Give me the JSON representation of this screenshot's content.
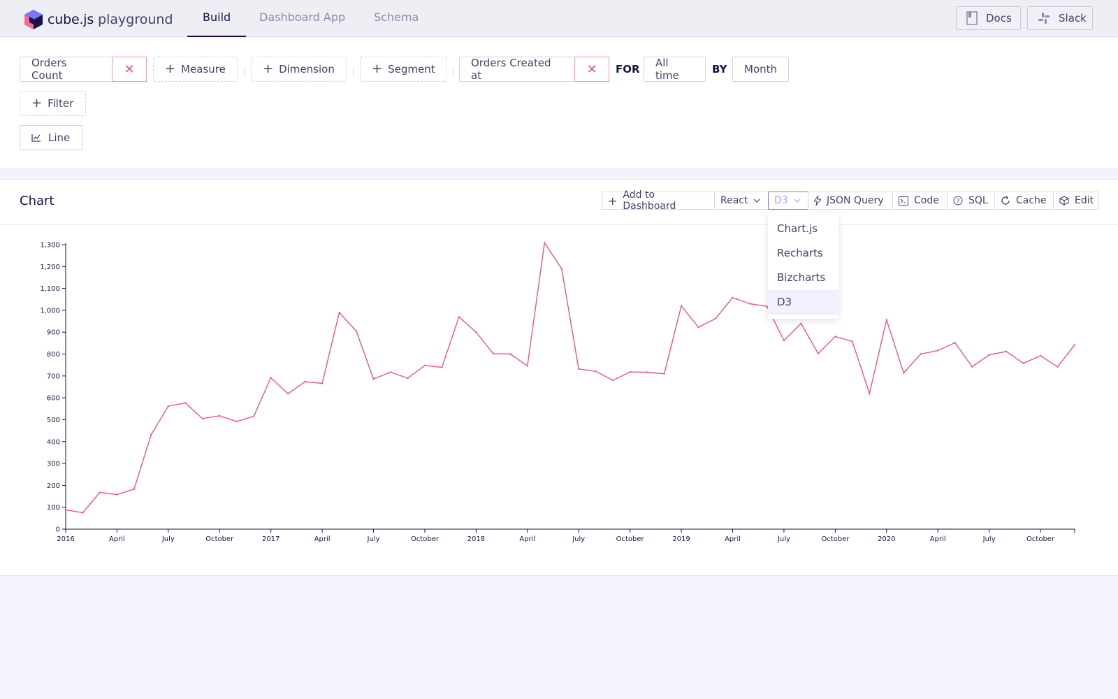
{
  "header": {
    "logo_brand": "cube.js",
    "logo_sub": "playground",
    "tabs": [
      {
        "label": "Build",
        "active": true
      },
      {
        "label": "Dashboard App",
        "active": false
      },
      {
        "label": "Schema",
        "active": false
      }
    ],
    "docs_label": "Docs",
    "slack_label": "Slack"
  },
  "query": {
    "measure_selected": "Orders Count",
    "measure_add": "Measure",
    "dimension_add": "Dimension",
    "segment_add": "Segment",
    "time_dimension": "Orders Created at",
    "for_label": "FOR",
    "date_range": "All time",
    "by_label": "BY",
    "granularity": "Month",
    "filter_add": "Filter",
    "chart_type": "Line"
  },
  "chart_card": {
    "title": "Chart",
    "toolbar": {
      "add_to_dashboard": "Add to Dashboard",
      "framework": "React",
      "library": "D3",
      "json_query": "JSON Query",
      "code": "Code",
      "sql": "SQL",
      "cache": "Cache",
      "edit": "Edit"
    },
    "library_menu": [
      "Chart.js",
      "Recharts",
      "Bizcharts",
      "D3"
    ],
    "library_selected": "D3"
  },
  "colors": {
    "accent": "#7a77ff",
    "line": "#f0547a",
    "text_dark": "#141446",
    "text": "#43436b"
  },
  "chart_data": {
    "type": "line",
    "series": [
      {
        "values": [
          88,
          75,
          168,
          158,
          183,
          432,
          562,
          577,
          505,
          518,
          492,
          516,
          692,
          619,
          674,
          666,
          990,
          904,
          686,
          717,
          690,
          748,
          739,
          970,
          900,
          802,
          800,
          746,
          1308,
          1190,
          732,
          721,
          680,
          718,
          717,
          710,
          1020,
          922,
          962,
          1058,
          1030,
          1018,
          862,
          940,
          802,
          880,
          858,
          620,
          956,
          714,
          800,
          816,
          852,
          742,
          796,
          812,
          758,
          792,
          742,
          842
        ]
      }
    ],
    "x_start": "2016-01",
    "x_interval": "month",
    "x_ticks": [
      "2016",
      "April",
      "July",
      "October",
      "2017",
      "April",
      "July",
      "October",
      "2018",
      "April",
      "July",
      "October",
      "2019",
      "April",
      "July",
      "October",
      "2020",
      "April",
      "July",
      "October"
    ],
    "y_ticks": [
      "0",
      "100",
      "200",
      "300",
      "400",
      "500",
      "600",
      "700",
      "800",
      "900",
      "1,000",
      "1,100",
      "1,200",
      "1,300"
    ],
    "ylim": [
      0,
      1300
    ],
    "grid": false,
    "legend": "none"
  }
}
